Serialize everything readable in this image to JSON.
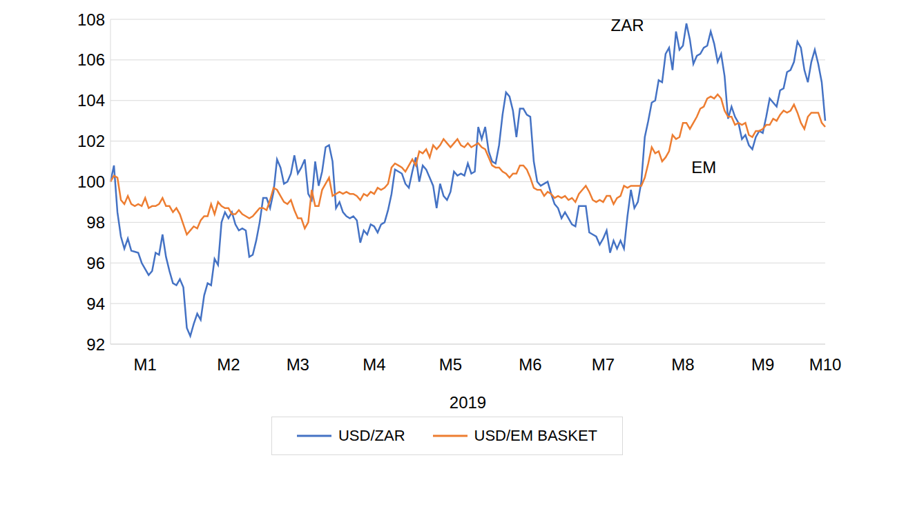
{
  "chart_data": {
    "type": "line",
    "x_label": "2019",
    "grid": true,
    "legend": "bottom",
    "ylim": [
      92,
      108
    ],
    "yticks": [
      92,
      94,
      96,
      98,
      100,
      102,
      104,
      106,
      108
    ],
    "categories": [
      null,
      null,
      null,
      null,
      null,
      null,
      null,
      null,
      null,
      null,
      "M1",
      null,
      null,
      null,
      null,
      null,
      null,
      null,
      null,
      null,
      null,
      null,
      null,
      null,
      null,
      null,
      null,
      null,
      null,
      null,
      null,
      null,
      null,
      null,
      "M2",
      null,
      null,
      null,
      null,
      null,
      null,
      null,
      null,
      null,
      null,
      null,
      null,
      null,
      null,
      null,
      null,
      null,
      null,
      null,
      "M3",
      null,
      null,
      null,
      null,
      null,
      null,
      null,
      null,
      null,
      null,
      null,
      null,
      null,
      null,
      null,
      null,
      null,
      null,
      null,
      null,
      null,
      "M4",
      null,
      null,
      null,
      null,
      null,
      null,
      null,
      null,
      null,
      null,
      null,
      null,
      null,
      null,
      null,
      null,
      null,
      null,
      null,
      null,
      null,
      "M5",
      null,
      null,
      null,
      null,
      null,
      null,
      null,
      null,
      null,
      null,
      null,
      null,
      null,
      null,
      null,
      null,
      null,
      null,
      null,
      null,
      null,
      null,
      "M6",
      null,
      null,
      null,
      null,
      null,
      null,
      null,
      null,
      null,
      null,
      null,
      null,
      null,
      null,
      null,
      null,
      null,
      null,
      null,
      null,
      "M7",
      null,
      null,
      null,
      null,
      null,
      null,
      null,
      null,
      null,
      null,
      null,
      null,
      null,
      null,
      null,
      null,
      null,
      null,
      null,
      null,
      null,
      null,
      "M8",
      null,
      null,
      null,
      null,
      null,
      null,
      null,
      null,
      null,
      null,
      null,
      null,
      null,
      null,
      null,
      null,
      null,
      null,
      null,
      null,
      null,
      null,
      "M9",
      null,
      null,
      null,
      null,
      null,
      null,
      null,
      null,
      null,
      null,
      null,
      null,
      null,
      null,
      null,
      null,
      null,
      "M10"
    ],
    "series": [
      {
        "name": "USD/ZAR",
        "color": "#4472c4",
        "values": [
          100,
          100.8,
          98.5,
          97.3,
          96.7,
          97.2,
          96.6,
          96.55,
          96.5,
          96.0,
          95.7,
          95.4,
          95.6,
          96.5,
          96.4,
          97.4,
          96.3,
          95.6,
          95.0,
          94.9,
          95.2,
          94.8,
          92.8,
          92.4,
          93.0,
          93.5,
          93.2,
          94.4,
          95.0,
          94.9,
          96.2,
          95.9,
          98.0,
          98.5,
          98.2,
          98.5,
          97.9,
          97.6,
          97.7,
          97.6,
          96.3,
          96.4,
          97.1,
          98.0,
          99.2,
          99.2,
          98.7,
          99.5,
          101.1,
          100.7,
          99.9,
          100.0,
          100.4,
          101.3,
          100.4,
          100.7,
          101.1,
          99.4,
          99.1,
          101.0,
          99.8,
          100.5,
          101.7,
          101.8,
          101.0,
          98.7,
          99.0,
          98.5,
          98.3,
          98.2,
          98.3,
          98.1,
          97.0,
          97.6,
          97.4,
          97.9,
          97.8,
          97.5,
          97.9,
          98.0,
          98.6,
          99.4,
          100.6,
          100.5,
          100.4,
          99.9,
          99.7,
          100.5,
          101.2,
          100.0,
          100.8,
          100.6,
          100.2,
          99.8,
          98.7,
          99.9,
          99.3,
          99.1,
          99.5,
          100.5,
          100.3,
          100.4,
          100.3,
          100.9,
          100.4,
          100.5,
          102.7,
          102.1,
          102.7,
          101.5,
          101.0,
          100.9,
          101.8,
          103.3,
          104.4,
          104.2,
          103.5,
          102.2,
          103.6,
          103.6,
          103.3,
          103.2,
          101.0,
          100.0,
          99.8,
          99.9,
          100.0,
          99.4,
          98.9,
          98.7,
          98.2,
          98.5,
          98.2,
          97.9,
          97.8,
          98.8,
          98.8,
          98.8,
          97.5,
          97.4,
          97.3,
          96.9,
          97.2,
          97.6,
          96.5,
          97.1,
          96.7,
          97.1,
          96.7,
          98.3,
          99.6,
          98.7,
          99.0,
          100.0,
          102.2,
          103.0,
          103.9,
          104.0,
          105.0,
          104.9,
          106.3,
          106.6,
          105.5,
          107.4,
          106.5,
          106.7,
          107.8,
          107.0,
          105.8,
          106.2,
          106.3,
          106.6,
          106.7,
          107.4,
          106.8,
          105.9,
          106.3,
          105.2,
          103.1,
          103.7,
          103.2,
          102.9,
          102.1,
          102.3,
          101.8,
          101.6,
          102.2,
          102.5,
          102.4,
          103.2,
          104.1,
          103.9,
          103.7,
          104.5,
          104.6,
          105.4,
          105.5,
          105.9,
          106.9,
          106.6,
          105.5,
          104.9,
          105.9,
          106.5,
          105.8,
          104.9,
          103.0
        ]
      },
      {
        "name": "USD/EM BASKET",
        "color": "#ed7d31",
        "values": [
          100,
          100.3,
          100.2,
          99.1,
          98.9,
          99.3,
          98.9,
          98.8,
          98.9,
          98.8,
          99.2,
          98.7,
          98.8,
          98.8,
          98.9,
          99.2,
          98.8,
          98.8,
          98.5,
          98.7,
          98.4,
          97.9,
          97.4,
          97.6,
          97.8,
          97.7,
          98.1,
          98.3,
          98.3,
          98.9,
          98.4,
          99.0,
          98.8,
          98.7,
          98.7,
          98.4,
          98.4,
          98.6,
          98.4,
          98.3,
          98.2,
          98.3,
          98.5,
          98.7,
          98.7,
          98.6,
          99.1,
          99.7,
          99.6,
          99.3,
          99.0,
          98.9,
          99.1,
          98.6,
          98.2,
          98.2,
          97.7,
          98.0,
          99.6,
          98.8,
          98.8,
          99.6,
          99.9,
          100.2,
          99.3,
          99.4,
          99.5,
          99.4,
          99.5,
          99.4,
          99.4,
          99.3,
          99.1,
          99.4,
          99.3,
          99.5,
          99.4,
          99.7,
          99.6,
          99.7,
          99.9,
          100.7,
          100.9,
          100.8,
          100.7,
          100.5,
          100.8,
          101.1,
          100.8,
          101.5,
          101.4,
          101.6,
          101.2,
          101.8,
          101.6,
          101.8,
          102.1,
          101.9,
          101.7,
          101.9,
          102.1,
          101.8,
          101.7,
          101.9,
          101.7,
          101.8,
          101.9,
          101.7,
          101.6,
          101.2,
          100.8,
          100.7,
          100.7,
          100.5,
          100.4,
          100.2,
          100.4,
          100.4,
          100.8,
          100.8,
          100.6,
          100.2,
          99.7,
          99.6,
          99.6,
          99.3,
          99.5,
          99.4,
          99.2,
          99.3,
          99.2,
          99.3,
          99.1,
          99.2,
          99.0,
          99.4,
          99.6,
          99.8,
          99.5,
          99.1,
          99.0,
          99.1,
          99.0,
          99.3,
          99.3,
          98.9,
          99.2,
          99.3,
          99.8,
          99.7,
          99.8,
          99.8,
          99.8,
          99.8,
          100.2,
          100.9,
          101.7,
          101.4,
          101.5,
          101.0,
          101.2,
          101.5,
          102.3,
          102.1,
          102.2,
          102.9,
          102.9,
          102.6,
          102.9,
          103.2,
          103.6,
          103.7,
          104.1,
          104.2,
          104.1,
          104.3,
          104.1,
          103.5,
          103.2,
          103.2,
          102.8,
          102.9,
          102.8,
          102.9,
          102.3,
          102.2,
          102.5,
          102.5,
          102.6,
          102.8,
          102.8,
          103.1,
          103.0,
          103.3,
          103.5,
          103.4,
          103.5,
          103.8,
          103.4,
          102.9,
          102.6,
          103.2,
          103.4,
          103.4,
          103.4,
          102.9,
          102.7
        ]
      }
    ],
    "annotations": [
      {
        "text": "ZAR",
        "x": 149,
        "y": 107.7
      },
      {
        "text": "EM",
        "x": 171,
        "y": 100.7
      }
    ]
  }
}
